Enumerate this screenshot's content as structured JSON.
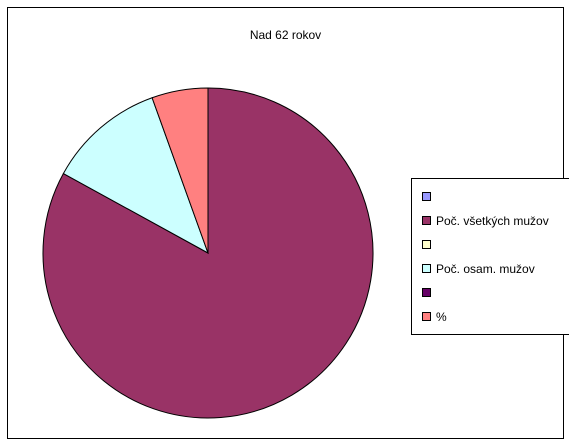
{
  "chart_data": {
    "type": "pie",
    "title": "Nad 62 rokov",
    "legend_position": "right",
    "slices": [
      {
        "label": "",
        "value": 0,
        "color": "#9999FF"
      },
      {
        "label": "Poč. všetkých mužov",
        "value": 83,
        "color": "#993366"
      },
      {
        "label": "",
        "value": 0,
        "color": "#FFFFCC"
      },
      {
        "label": "Poč. osam. mužov",
        "value": 11.5,
        "color": "#CCFFFF"
      },
      {
        "label": "",
        "value": 0,
        "color": "#660066"
      },
      {
        "label": "%",
        "value": 5.5,
        "color": "#FF8080"
      }
    ]
  }
}
